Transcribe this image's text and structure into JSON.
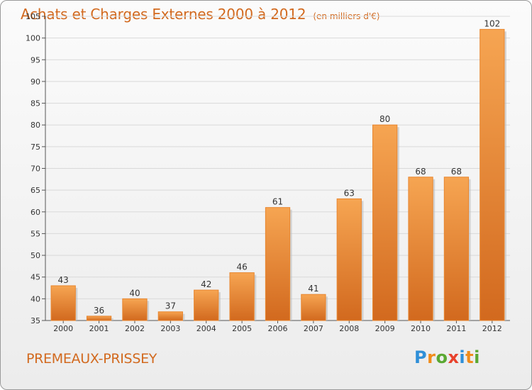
{
  "header": {
    "title": "Achats et Charges Externes 2000 à 2012",
    "unit": "(en milliers d'€)"
  },
  "footer": {
    "commune": "PREMEAUX-PRISSEY",
    "brand_letters": [
      "P",
      "r",
      "o",
      "x",
      "i",
      "t",
      "i"
    ],
    "brand_colors": [
      "#2f8fd8",
      "#f08c1a",
      "#5aa832",
      "#e8422c",
      "#2f8fd8",
      "#f08c1a",
      "#5aa832"
    ]
  },
  "chart_data": {
    "type": "bar",
    "categories": [
      "2000",
      "2001",
      "2002",
      "2003",
      "2004",
      "2005",
      "2006",
      "2007",
      "2008",
      "2009",
      "2010",
      "2011",
      "2012"
    ],
    "values": [
      43,
      36,
      40,
      37,
      42,
      46,
      61,
      41,
      63,
      80,
      68,
      68,
      102
    ],
    "ylim": [
      35,
      105
    ],
    "yticks": [
      35,
      40,
      45,
      50,
      55,
      60,
      65,
      70,
      75,
      80,
      85,
      90,
      95,
      100,
      105
    ],
    "grid": true,
    "bar_color_light": "#f6a552",
    "bar_color_dark": "#d2691e",
    "title": "Achats et Charges Externes 2000 à 2012",
    "xlabel": "",
    "ylabel": ""
  }
}
